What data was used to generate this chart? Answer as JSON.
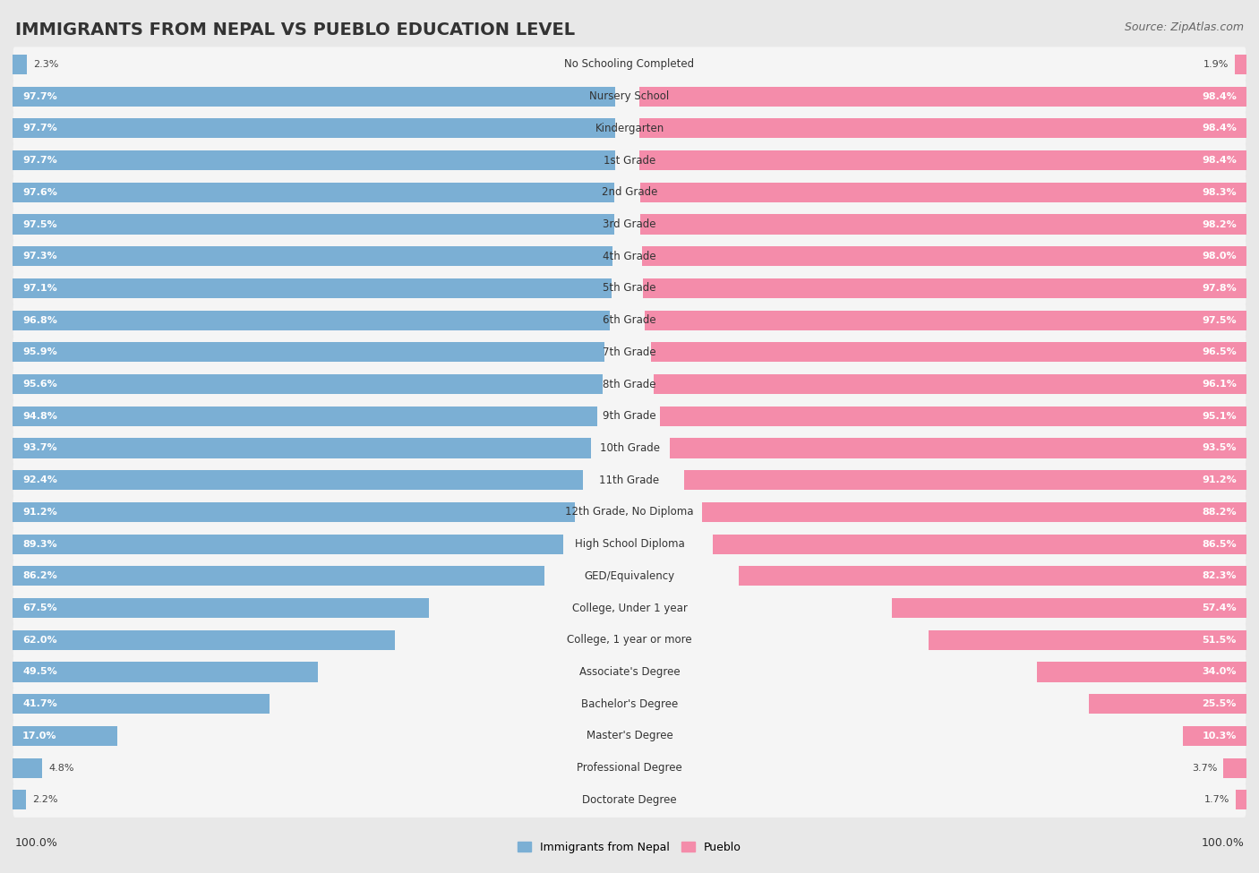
{
  "title": "IMMIGRANTS FROM NEPAL VS PUEBLO EDUCATION LEVEL",
  "source": "Source: ZipAtlas.com",
  "categories": [
    "No Schooling Completed",
    "Nursery School",
    "Kindergarten",
    "1st Grade",
    "2nd Grade",
    "3rd Grade",
    "4th Grade",
    "5th Grade",
    "6th Grade",
    "7th Grade",
    "8th Grade",
    "9th Grade",
    "10th Grade",
    "11th Grade",
    "12th Grade, No Diploma",
    "High School Diploma",
    "GED/Equivalency",
    "College, Under 1 year",
    "College, 1 year or more",
    "Associate's Degree",
    "Bachelor's Degree",
    "Master's Degree",
    "Professional Degree",
    "Doctorate Degree"
  ],
  "nepal_values": [
    2.3,
    97.7,
    97.7,
    97.7,
    97.6,
    97.5,
    97.3,
    97.1,
    96.8,
    95.9,
    95.6,
    94.8,
    93.7,
    92.4,
    91.2,
    89.3,
    86.2,
    67.5,
    62.0,
    49.5,
    41.7,
    17.0,
    4.8,
    2.2
  ],
  "pueblo_values": [
    1.9,
    98.4,
    98.4,
    98.4,
    98.3,
    98.2,
    98.0,
    97.8,
    97.5,
    96.5,
    96.1,
    95.1,
    93.5,
    91.2,
    88.2,
    86.5,
    82.3,
    57.4,
    51.5,
    34.0,
    25.5,
    10.3,
    3.7,
    1.7
  ],
  "nepal_color": "#7bafd4",
  "pueblo_color": "#f48caa",
  "bg_color": "#e8e8e8",
  "row_bg_color": "#f5f5f5",
  "title_fontsize": 14,
  "label_fontsize": 8.5,
  "value_fontsize": 8.0,
  "legend_fontsize": 9,
  "source_fontsize": 9
}
